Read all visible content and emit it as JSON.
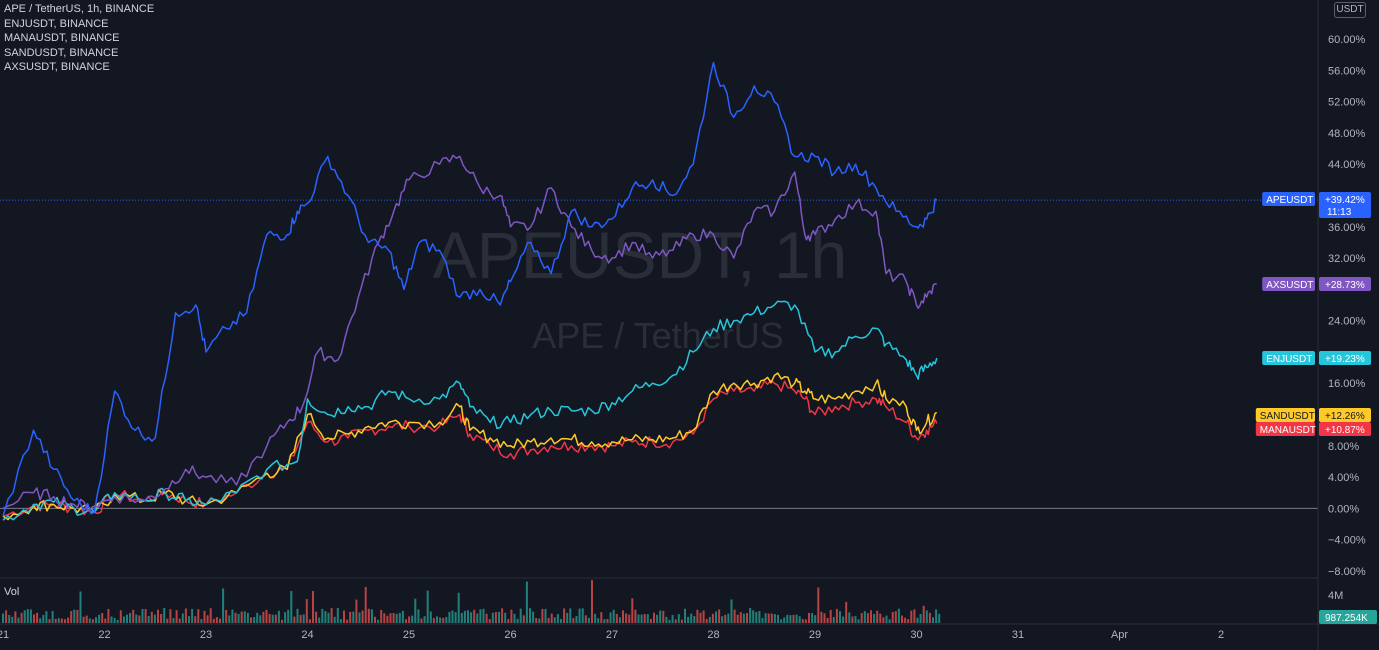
{
  "legend": {
    "symbols": [
      "APE / TetherUS, 1h, BINANCE",
      "ENJUSDT, BINANCE",
      "MANAUSDT, BINANCE",
      "SANDUSDT, BINANCE",
      "AXSUSDT, BINANCE"
    ]
  },
  "currency_button": "USDT",
  "watermark": {
    "symbol": "APEUSDT, 1h",
    "description": "APE / TetherUS"
  },
  "volume": {
    "label": "Vol",
    "axis_label": "4M",
    "current_value": "987.254K"
  },
  "colors": {
    "background": "#131722",
    "APEUSDT": "#2962ff",
    "AXSUSDT": "#7e57c2",
    "ENJUSDT": "#26c6da",
    "SANDUSDT": "#ffca28",
    "MANAUSDT": "#f23645",
    "volume_up": "#26a69a",
    "volume_down": "#ef5350"
  },
  "chart_data": {
    "type": "line",
    "xlabel": "",
    "ylabel": "",
    "y_unit": "%",
    "ylim": [
      -8.9,
      65
    ],
    "grid": false,
    "x_tick_labels": [
      "21",
      "22",
      "23",
      "24",
      "25",
      "26",
      "27",
      "28",
      "29",
      "30",
      "31",
      "Apr",
      "2"
    ],
    "y_tick_labels": [
      "60.00%",
      "56.00%",
      "52.00%",
      "48.00%",
      "44.00%",
      "36.00%",
      "32.00%",
      "24.00%",
      "16.00%",
      "8.00%",
      "4.00%",
      "0.00%",
      "−4.00%",
      "−8.00%"
    ],
    "y_tick_values": [
      60,
      56,
      52,
      48,
      44,
      36,
      32,
      24,
      16,
      8,
      4,
      0,
      -4,
      -8
    ],
    "x_day_start": 21,
    "series": [
      {
        "name": "APEUSDT",
        "badge": "APEUSDT",
        "last_label": "+39.42%",
        "countdown": "11:13",
        "points": [
          [
            21,
            -1
          ],
          [
            21.3,
            10
          ],
          [
            21.5,
            5
          ],
          [
            21.7,
            1
          ],
          [
            21.9,
            -0.5
          ],
          [
            22.1,
            15
          ],
          [
            22.3,
            10
          ],
          [
            22.5,
            9
          ],
          [
            22.7,
            25
          ],
          [
            22.9,
            26
          ],
          [
            23.0,
            20
          ],
          [
            23.2,
            23
          ],
          [
            23.4,
            25
          ],
          [
            23.6,
            35
          ],
          [
            23.8,
            35
          ],
          [
            23.9,
            38
          ],
          [
            24.0,
            39
          ],
          [
            24.2,
            45
          ],
          [
            24.4,
            40
          ],
          [
            24.6,
            34
          ],
          [
            24.8,
            33
          ],
          [
            24.95,
            28
          ],
          [
            25.1,
            34
          ],
          [
            25.3,
            33
          ],
          [
            25.5,
            27
          ],
          [
            25.7,
            28
          ],
          [
            25.9,
            26
          ],
          [
            26.0,
            29
          ],
          [
            26.2,
            34
          ],
          [
            26.4,
            30
          ],
          [
            26.6,
            38
          ],
          [
            26.8,
            36
          ],
          [
            27.0,
            37
          ],
          [
            27.2,
            41
          ],
          [
            27.4,
            42
          ],
          [
            27.6,
            40
          ],
          [
            27.8,
            44
          ],
          [
            28.0,
            57
          ],
          [
            28.2,
            50
          ],
          [
            28.4,
            54
          ],
          [
            28.6,
            52
          ],
          [
            28.8,
            45
          ],
          [
            29.0,
            45
          ],
          [
            29.2,
            43
          ],
          [
            29.4,
            44
          ],
          [
            29.6,
            41
          ],
          [
            29.8,
            38
          ],
          [
            30.0,
            36
          ],
          [
            30.1,
            37
          ],
          [
            30.2,
            39.42
          ]
        ]
      },
      {
        "name": "AXSUSDT",
        "badge": "AXSUSDT",
        "last_label": "+28.73%",
        "points": [
          [
            21,
            0
          ],
          [
            21.3,
            2
          ],
          [
            21.5,
            1.5
          ],
          [
            21.7,
            0.5
          ],
          [
            21.9,
            0.3
          ],
          [
            22.1,
            1.5
          ],
          [
            22.4,
            1
          ],
          [
            22.6,
            2.5
          ],
          [
            22.8,
            5
          ],
          [
            23.0,
            4
          ],
          [
            23.3,
            3
          ],
          [
            23.6,
            8
          ],
          [
            23.8,
            11
          ],
          [
            23.95,
            13
          ],
          [
            24.1,
            20
          ],
          [
            24.3,
            19
          ],
          [
            24.5,
            27
          ],
          [
            24.7,
            34
          ],
          [
            24.85,
            38
          ],
          [
            25.0,
            42
          ],
          [
            25.3,
            44
          ],
          [
            25.5,
            45
          ],
          [
            25.7,
            41
          ],
          [
            25.9,
            40
          ],
          [
            26.0,
            36
          ],
          [
            26.2,
            36
          ],
          [
            26.4,
            41
          ],
          [
            26.6,
            36
          ],
          [
            26.8,
            33
          ],
          [
            27.0,
            32
          ],
          [
            27.2,
            34
          ],
          [
            27.4,
            32
          ],
          [
            27.6,
            33
          ],
          [
            27.8,
            35
          ],
          [
            28.0,
            35
          ],
          [
            28.2,
            32
          ],
          [
            28.4,
            38
          ],
          [
            28.6,
            38
          ],
          [
            28.8,
            43
          ],
          [
            28.9,
            35
          ],
          [
            29.0,
            35
          ],
          [
            29.2,
            37
          ],
          [
            29.4,
            39
          ],
          [
            29.6,
            38
          ],
          [
            29.7,
            30
          ],
          [
            29.9,
            29
          ],
          [
            30.0,
            26
          ],
          [
            30.1,
            27
          ],
          [
            30.2,
            28.73
          ]
        ]
      },
      {
        "name": "ENJUSDT",
        "badge": "ENJUSDT",
        "last_label": "+19.23%",
        "points": [
          [
            21,
            -1.5
          ],
          [
            21.3,
            0.5
          ],
          [
            21.5,
            0.8
          ],
          [
            21.7,
            0
          ],
          [
            21.9,
            -0.5
          ],
          [
            22.1,
            2
          ],
          [
            22.4,
            1
          ],
          [
            22.6,
            2
          ],
          [
            22.8,
            1
          ],
          [
            23.0,
            0.5
          ],
          [
            23.3,
            2
          ],
          [
            23.6,
            5
          ],
          [
            23.9,
            6
          ],
          [
            24.0,
            14
          ],
          [
            24.2,
            12
          ],
          [
            24.4,
            13
          ],
          [
            24.6,
            13
          ],
          [
            24.8,
            15
          ],
          [
            25.0,
            14
          ],
          [
            25.3,
            14
          ],
          [
            25.5,
            16
          ],
          [
            25.6,
            13
          ],
          [
            25.8,
            11
          ],
          [
            26.0,
            11
          ],
          [
            26.2,
            12
          ],
          [
            26.4,
            12.5
          ],
          [
            26.6,
            12.5
          ],
          [
            26.8,
            12.5
          ],
          [
            27.0,
            13.5
          ],
          [
            27.2,
            15
          ],
          [
            27.4,
            16
          ],
          [
            27.6,
            17
          ],
          [
            27.8,
            20
          ],
          [
            28.0,
            23
          ],
          [
            28.2,
            24
          ],
          [
            28.4,
            25
          ],
          [
            28.6,
            26
          ],
          [
            28.8,
            26
          ],
          [
            29.0,
            20
          ],
          [
            29.2,
            20
          ],
          [
            29.4,
            22
          ],
          [
            29.6,
            23
          ],
          [
            29.7,
            21
          ],
          [
            29.9,
            19
          ],
          [
            30.0,
            17
          ],
          [
            30.1,
            18
          ],
          [
            30.2,
            19.23
          ]
        ]
      },
      {
        "name": "SANDUSDT",
        "badge": "SANDUSDT",
        "last_label": "+12.26%",
        "points": [
          [
            21,
            -1
          ],
          [
            21.3,
            0.3
          ],
          [
            21.5,
            0.5
          ],
          [
            21.7,
            0
          ],
          [
            21.9,
            -0.5
          ],
          [
            22.1,
            1.8
          ],
          [
            22.4,
            1
          ],
          [
            22.6,
            2
          ],
          [
            22.8,
            1
          ],
          [
            23.0,
            0.5
          ],
          [
            23.3,
            2
          ],
          [
            23.6,
            4.5
          ],
          [
            23.8,
            5
          ],
          [
            24.0,
            12
          ],
          [
            24.2,
            9
          ],
          [
            24.4,
            9.5
          ],
          [
            24.6,
            10.5
          ],
          [
            24.8,
            11
          ],
          [
            25.0,
            11
          ],
          [
            25.3,
            11
          ],
          [
            25.5,
            13
          ],
          [
            25.6,
            10
          ],
          [
            25.8,
            9
          ],
          [
            26.0,
            8
          ],
          [
            26.2,
            8.5
          ],
          [
            26.4,
            9
          ],
          [
            26.6,
            8.8
          ],
          [
            26.8,
            8.5
          ],
          [
            27.0,
            8.5
          ],
          [
            27.2,
            8.8
          ],
          [
            27.4,
            8.8
          ],
          [
            27.6,
            9
          ],
          [
            27.8,
            10
          ],
          [
            28.0,
            15
          ],
          [
            28.2,
            16
          ],
          [
            28.4,
            16
          ],
          [
            28.6,
            17
          ],
          [
            28.8,
            16
          ],
          [
            28.9,
            15
          ],
          [
            29.0,
            14
          ],
          [
            29.2,
            14
          ],
          [
            29.4,
            15
          ],
          [
            29.6,
            16
          ],
          [
            29.7,
            14
          ],
          [
            29.9,
            13
          ],
          [
            30.0,
            10
          ],
          [
            30.1,
            11
          ],
          [
            30.2,
            12.26
          ]
        ]
      },
      {
        "name": "MANAUSDT",
        "badge": "MANAUSDT",
        "last_label": "+10.87%",
        "points": [
          [
            21,
            -1
          ],
          [
            21.3,
            0.3
          ],
          [
            21.5,
            0.5
          ],
          [
            21.7,
            0
          ],
          [
            21.9,
            -0.5
          ],
          [
            22.1,
            1.8
          ],
          [
            22.4,
            1
          ],
          [
            22.6,
            2
          ],
          [
            22.8,
            1
          ],
          [
            23.0,
            0.5
          ],
          [
            23.3,
            2
          ],
          [
            23.6,
            4.5
          ],
          [
            23.8,
            5
          ],
          [
            24.0,
            11
          ],
          [
            24.2,
            8.5
          ],
          [
            24.4,
            9
          ],
          [
            24.6,
            10
          ],
          [
            24.8,
            10.5
          ],
          [
            25.0,
            10.5
          ],
          [
            25.3,
            10.5
          ],
          [
            25.5,
            12
          ],
          [
            25.6,
            9.5
          ],
          [
            25.8,
            8
          ],
          [
            26.0,
            7
          ],
          [
            26.2,
            7.5
          ],
          [
            26.4,
            8
          ],
          [
            26.6,
            8
          ],
          [
            26.8,
            8
          ],
          [
            27.0,
            8
          ],
          [
            27.2,
            8.5
          ],
          [
            27.4,
            8.5
          ],
          [
            27.6,
            8.5
          ],
          [
            27.8,
            9.5
          ],
          [
            28.0,
            14
          ],
          [
            28.2,
            15
          ],
          [
            28.4,
            15
          ],
          [
            28.6,
            16
          ],
          [
            28.8,
            15
          ],
          [
            28.9,
            14
          ],
          [
            29.0,
            12
          ],
          [
            29.2,
            13
          ],
          [
            29.4,
            13.5
          ],
          [
            29.6,
            14
          ],
          [
            29.7,
            13
          ],
          [
            29.9,
            11
          ],
          [
            30.0,
            9
          ],
          [
            30.1,
            10
          ],
          [
            30.2,
            10.87
          ]
        ]
      }
    ]
  }
}
